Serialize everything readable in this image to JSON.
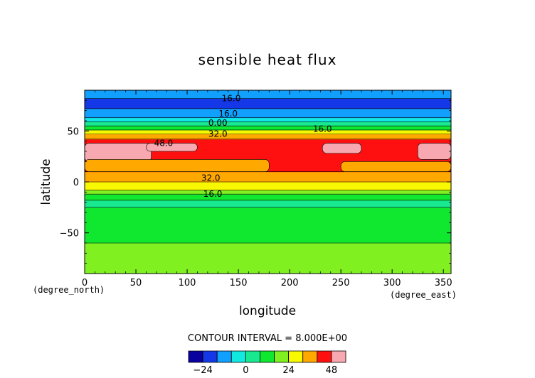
{
  "chart_data": {
    "type": "heatmap",
    "subtype": "filled-contour",
    "title": "sensible heat flux",
    "xlabel": "longitude",
    "ylabel": "latitude",
    "x_unit_label": "(degree_east)",
    "y_unit_label": "(degree_north)",
    "xlim": [
      0,
      357.5
    ],
    "ylim": [
      -90,
      90
    ],
    "x_ticks": [
      0,
      50,
      100,
      150,
      200,
      250,
      300,
      350
    ],
    "y_ticks": [
      -50,
      0,
      50
    ],
    "grid": false,
    "contour_interval_text": "CONTOUR INTERVAL = 8.000E+00",
    "contour_levels": [
      -24,
      -16,
      -8,
      0,
      8,
      16,
      24,
      32,
      40,
      48
    ],
    "contour_labels": [
      {
        "text": "16.0",
        "x": 143,
        "y": 82
      },
      {
        "text": "16.0",
        "x": 140,
        "y": 67
      },
      {
        "text": "0.00",
        "x": 130,
        "y": 58
      },
      {
        "text": "32.0",
        "x": 130,
        "y": 47
      },
      {
        "text": "16.0",
        "x": 232,
        "y": 52
      },
      {
        "text": "48.0",
        "x": 77,
        "y": 38
      },
      {
        "text": "32.0",
        "x": 123,
        "y": 4
      },
      {
        "text": "16.0",
        "x": 125,
        "y": -12
      }
    ],
    "latitude_bands": [
      {
        "lat": [
          -90,
          -60
        ],
        "value": 20
      },
      {
        "lat": [
          -60,
          -45
        ],
        "value": 16
      },
      {
        "lat": [
          -45,
          -25
        ],
        "value": 12
      },
      {
        "lat": [
          -25,
          -18
        ],
        "value": 8
      },
      {
        "lat": [
          -18,
          -12
        ],
        "value": 12
      },
      {
        "lat": [
          -12,
          -8
        ],
        "value": 20
      },
      {
        "lat": [
          -8,
          0
        ],
        "value": 28
      },
      {
        "lat": [
          0,
          10
        ],
        "value": 36
      },
      {
        "lat": [
          10,
          32
        ],
        "value": 44
      },
      {
        "lat": [
          32,
          42
        ],
        "value": 44
      },
      {
        "lat": [
          42,
          47
        ],
        "value": 36
      },
      {
        "lat": [
          47,
          51
        ],
        "value": 28
      },
      {
        "lat": [
          51,
          55
        ],
        "value": 12
      },
      {
        "lat": [
          55,
          59
        ],
        "value": 4
      },
      {
        "lat": [
          59,
          63
        ],
        "value": -4
      },
      {
        "lat": [
          63,
          72
        ],
        "value": -12
      },
      {
        "lat": [
          72,
          82
        ],
        "value": -20
      },
      {
        "lat": [
          82,
          90
        ],
        "value": -12
      }
    ],
    "features": [
      {
        "lon": [
          0,
          65
        ],
        "lat": [
          20,
          38
        ],
        "value": 52
      },
      {
        "lon": [
          60,
          110
        ],
        "lat": [
          30,
          38
        ],
        "value": 52
      },
      {
        "lon": [
          232,
          270
        ],
        "lat": [
          28,
          38
        ],
        "value": 52
      },
      {
        "lon": [
          325,
          357.5
        ],
        "lat": [
          22,
          38
        ],
        "value": 52
      },
      {
        "lon": [
          0,
          180
        ],
        "lat": [
          10,
          22
        ],
        "value": 36
      },
      {
        "lon": [
          250,
          357.5
        ],
        "lat": [
          10,
          20
        ],
        "value": 36
      }
    ],
    "colorbar": {
      "colors": [
        "#0a00a0",
        "#1438e8",
        "#12a0ff",
        "#10e8e0",
        "#18e890",
        "#10e830",
        "#80f020",
        "#f8f800",
        "#ffa800",
        "#ff1010",
        "#f8a8b0"
      ],
      "labels": [
        {
          "text": "−24",
          "at": 0
        },
        {
          "text": "0",
          "at": 3
        },
        {
          "text": "24",
          "at": 6
        },
        {
          "text": "48",
          "at": 9
        }
      ]
    }
  }
}
